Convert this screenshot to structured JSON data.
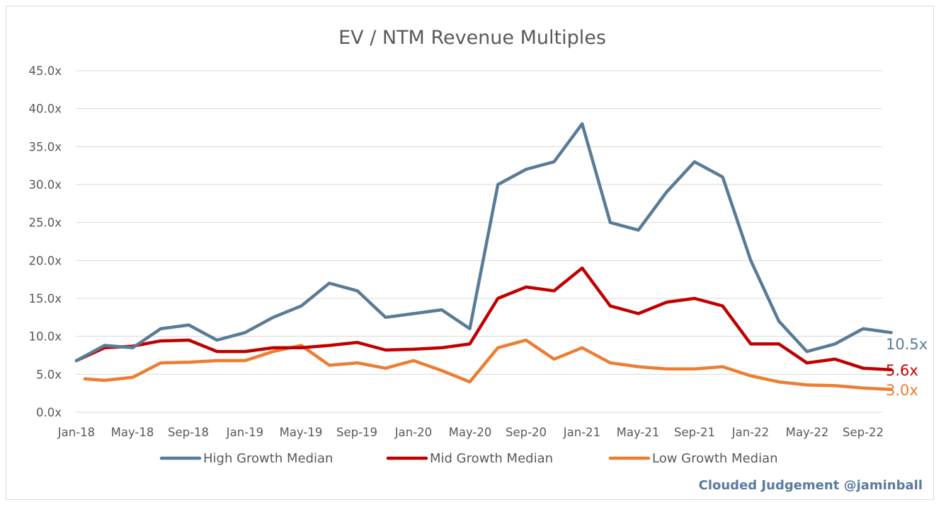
{
  "chart_data": {
    "type": "line",
    "title": "EV / NTM Revenue Multiples",
    "xlabel": "",
    "ylabel": "",
    "ylim": [
      0,
      45
    ],
    "y_ticks": [
      "0.0x",
      "5.0x",
      "10.0x",
      "15.0x",
      "20.0x",
      "25.0x",
      "30.0x",
      "35.0x",
      "40.0x",
      "45.0x"
    ],
    "x_ticks": [
      "Jan-18",
      "May-18",
      "Sep-18",
      "Jan-19",
      "May-19",
      "Sep-19",
      "Jan-20",
      "May-20",
      "Sep-20",
      "Jan-21",
      "May-21",
      "Sep-21",
      "Jan-22",
      "May-22",
      "Sep-22"
    ],
    "grid": "horizontal",
    "legend_position": "bottom",
    "x": [
      "Jan-18",
      "Mar-18",
      "May-18",
      "Jul-18",
      "Sep-18",
      "Nov-18",
      "Jan-19",
      "Mar-19",
      "May-19",
      "Jul-19",
      "Sep-19",
      "Nov-19",
      "Jan-20",
      "Mar-20",
      "May-20",
      "Jul-20",
      "Sep-20",
      "Nov-20",
      "Jan-21",
      "Mar-21",
      "May-21",
      "Jul-21",
      "Sep-21",
      "Nov-21",
      "Jan-22",
      "Mar-22",
      "May-22",
      "Jul-22",
      "Sep-22",
      "Nov-22"
    ],
    "series": [
      {
        "name": "High Growth Median",
        "color": "#5a7b96",
        "end_label": "10.5x",
        "values": [
          6.8,
          8.8,
          8.5,
          11,
          11.5,
          9.5,
          10.5,
          12.5,
          14,
          17,
          16,
          12.5,
          13,
          13.5,
          11,
          30,
          32,
          33,
          38,
          25,
          24,
          29,
          33,
          31,
          20,
          12,
          8,
          9,
          11,
          10.5
        ]
      },
      {
        "name": "Mid Growth Median",
        "color": "#c00000",
        "end_label": "5.6x",
        "values": [
          6.8,
          8.5,
          8.7,
          9.4,
          9.5,
          8,
          8,
          8.5,
          8.5,
          8.8,
          9.2,
          8.2,
          8.3,
          8.5,
          9,
          15,
          16.5,
          16,
          19,
          14,
          13,
          14.5,
          15,
          14,
          9,
          9,
          6.5,
          7,
          5.8,
          5.6
        ]
      },
      {
        "name": "Low Growth Median",
        "color": "#ed7d31",
        "end_label": "3.0x",
        "values": [
          4.4,
          4.2,
          4.6,
          6.5,
          6.6,
          6.8,
          6.8,
          8,
          8.8,
          6.2,
          6.5,
          5.8,
          6.8,
          5.5,
          4,
          8.5,
          9.5,
          7,
          8.5,
          6.5,
          6,
          5.7,
          5.7,
          6,
          4.8,
          4,
          3.6,
          3.5,
          3.2,
          3.0
        ]
      }
    ]
  },
  "credit": "Clouded Judgement @jaminball"
}
